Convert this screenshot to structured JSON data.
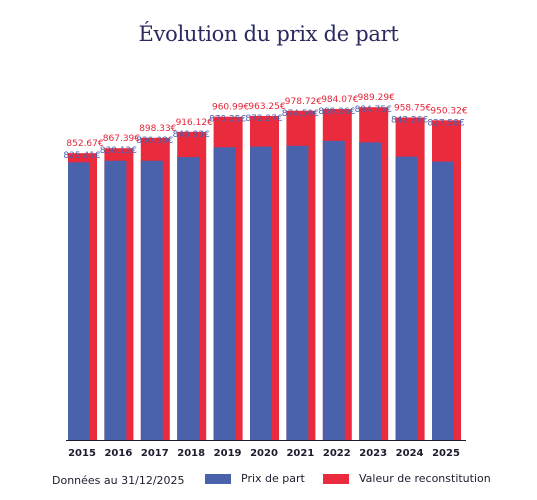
{
  "chart_data": {
    "type": "bar",
    "title": "Évolution du prix de part",
    "categories": [
      "2015",
      "2016",
      "2017",
      "2018",
      "2019",
      "2020",
      "2021",
      "2022",
      "2023",
      "2024",
      "2025"
    ],
    "series": [
      {
        "name": "Prix de part",
        "color": "#4a61ac",
        "values": [
          825.41,
          830.12,
          830.08,
          840.93,
          870.25,
          872.27,
          874.59,
          889.26,
          884.75,
          842.26,
          827.58
        ],
        "labels": [
          "825.41€",
          "830.12€",
          "830.08€",
          "840.93€",
          "870.25€",
          "872.27€",
          "874.59€",
          "889.26€",
          "884.75€",
          "842.26€",
          "827.58€"
        ]
      },
      {
        "name": "Valeur de reconstitution",
        "color": "#ea2a3d",
        "values": [
          852.67,
          867.39,
          898.33,
          916.12,
          960.99,
          963.25,
          978.72,
          984.07,
          989.29,
          958.75,
          950.32
        ],
        "labels": [
          "852.67€",
          "867.39€",
          "898.33€",
          "916.12€",
          "960.99€",
          "963.25€",
          "978.72€",
          "984.07€",
          "989.29€",
          "958.75€",
          "950.32€"
        ]
      }
    ],
    "legend_position": "bottom",
    "grid": false
  },
  "footer": {
    "note": "Données au 31/12/2025"
  }
}
